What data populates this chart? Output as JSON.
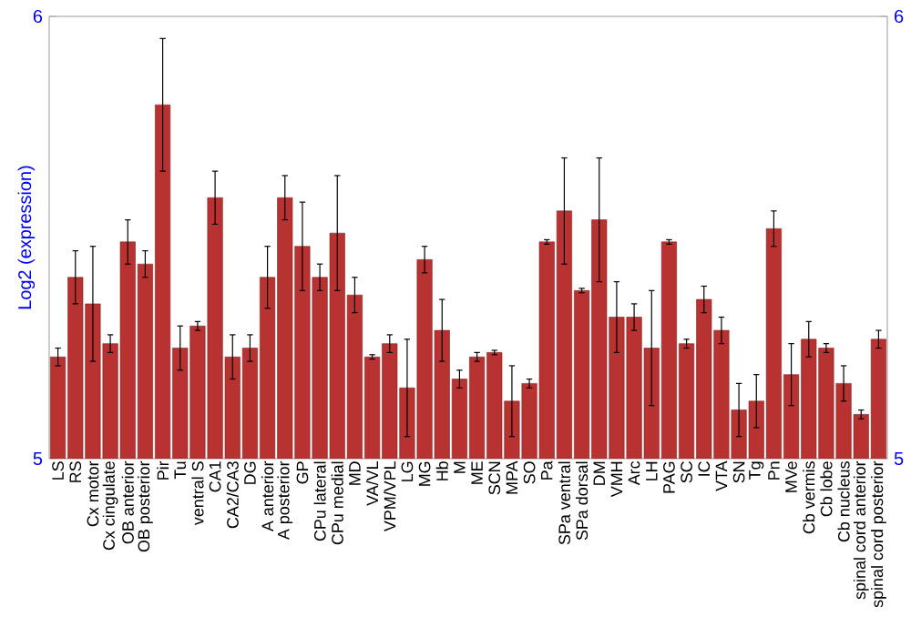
{
  "chart_data": {
    "type": "bar",
    "ylabel": "Log2 (expression)",
    "categories": [
      "LS",
      "RS",
      "Cx motor",
      "Cx cingulate",
      "OB anterior",
      "OB posterior",
      "Pir",
      "Tu",
      "ventral S",
      "CA1",
      "CA2/CA3",
      "DG",
      "A anterior",
      "A posterior",
      "GP",
      "CPu lateral",
      "CPu medial",
      "MD",
      "VA/VL",
      "VPM/VPL",
      "LG",
      "MG",
      "Hb",
      "M",
      "ME",
      "SCN",
      "MPA",
      "SO",
      "Pa",
      "SPa ventral",
      "SPa dorsal",
      "DM",
      "VMH",
      "Arc",
      "LH",
      "PAG",
      "SC",
      "IC",
      "VTA",
      "SN",
      "Tg",
      "Pn",
      "MVe",
      "Cb vermis",
      "Cb lobe",
      "Cb nucleus",
      "spinal cord anterior",
      "spinal cord posterior"
    ],
    "values": [
      5.23,
      5.41,
      5.35,
      5.26,
      5.49,
      5.44,
      5.8,
      5.25,
      5.3,
      5.59,
      5.23,
      5.25,
      5.41,
      5.59,
      5.48,
      5.41,
      5.51,
      5.37,
      5.23,
      5.26,
      5.16,
      5.45,
      5.29,
      5.18,
      5.23,
      5.24,
      5.13,
      5.17,
      5.49,
      5.56,
      5.38,
      5.54,
      5.32,
      5.32,
      5.25,
      5.49,
      5.26,
      5.36,
      5.29,
      5.11,
      5.13,
      5.52,
      5.19,
      5.27,
      5.25,
      5.17,
      5.1,
      5.27
    ],
    "errors": [
      0.02,
      0.06,
      0.13,
      0.02,
      0.05,
      0.03,
      0.15,
      0.05,
      0.01,
      0.06,
      0.05,
      0.03,
      0.07,
      0.05,
      0.1,
      0.03,
      0.13,
      0.04,
      0.005,
      0.02,
      0.11,
      0.03,
      0.07,
      0.02,
      0.01,
      0.005,
      0.08,
      0.01,
      0.005,
      0.12,
      0.005,
      0.14,
      0.08,
      0.03,
      0.13,
      0.005,
      0.01,
      0.03,
      0.03,
      0.06,
      0.06,
      0.04,
      0.07,
      0.04,
      0.01,
      0.04,
      0.01,
      0.02
    ],
    "color": "#b83232",
    "ylim": [
      5,
      6
    ],
    "yticks": [
      5,
      6
    ],
    "y2lim": [
      5,
      6
    ],
    "y2ticks": [
      5,
      6
    ]
  }
}
